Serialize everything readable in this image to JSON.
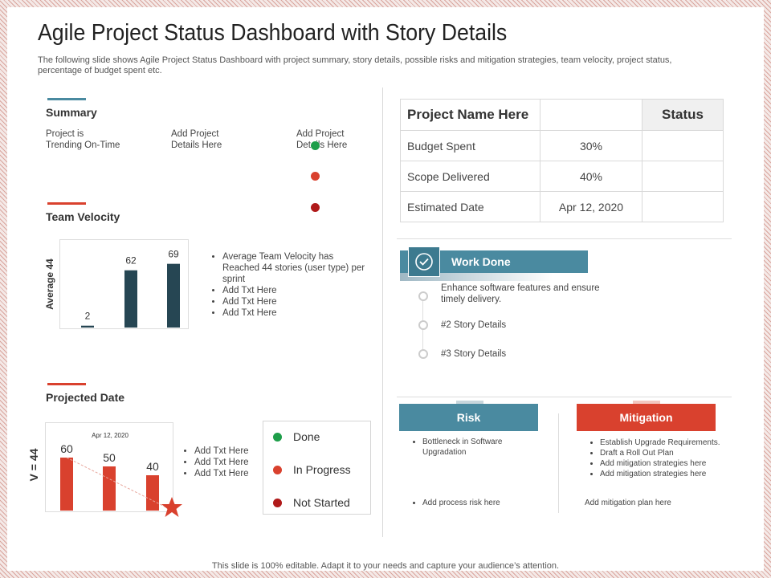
{
  "title": "Agile Project Status Dashboard with Story Details",
  "subtitle": "The following slide shows Agile Project Status Dashboard with project summary, story details, possible risks and mitigation strategies, team velocity, project status, percentage of budget spent etc.",
  "colors": {
    "teal": "#4a8aa0",
    "navy": "#264653",
    "red": "#d9412e",
    "green": "#1e9e4a",
    "dark_red": "#b01a1a"
  },
  "summary": {
    "heading": "Summary",
    "cols": [
      "Project is\nTrending On-Time",
      "Add Project\nDetails Here",
      "Add Project\nDetails Here"
    ],
    "status_dots": [
      "green",
      "red",
      "dark-red"
    ]
  },
  "velocity": {
    "heading": "Team Velocity",
    "axis_label": "Average 44",
    "bullets": [
      "Average Team Velocity has Reached 44 stories (user type) per sprint",
      "Add Txt Here",
      "Add Txt Here",
      "Add Txt Here"
    ]
  },
  "projected": {
    "heading": "Projected Date",
    "chart_label": "Apr 12, 2020",
    "axis_label": "V = 44",
    "bullets": [
      "Add Txt Here",
      "Add Txt Here",
      "Add Txt Here"
    ],
    "legend": [
      {
        "label": "Done",
        "color": "#1e9e4a"
      },
      {
        "label": "In Progress",
        "color": "#d9412e"
      },
      {
        "label": "Not Started",
        "color": "#b01a1a"
      }
    ]
  },
  "chart_data": [
    {
      "type": "bar",
      "title": "",
      "ylabel": "Average 44",
      "categories": [
        "",
        "",
        ""
      ],
      "values": [
        2,
        62,
        69
      ],
      "ylim": [
        0,
        80
      ]
    },
    {
      "type": "bar",
      "title": "Apr 12, 2020",
      "ylabel": "V = 44",
      "categories": [
        "",
        "",
        ""
      ],
      "values": [
        60,
        50,
        40
      ],
      "ylim": [
        0,
        80
      ]
    }
  ],
  "table": {
    "header": [
      "Project Name Here",
      "",
      "Status"
    ],
    "rows": [
      [
        "Budget Spent",
        "30%",
        ""
      ],
      [
        "Scope Delivered",
        "40%",
        ""
      ],
      [
        "Estimated Date",
        "Apr 12, 2020",
        ""
      ]
    ]
  },
  "work_done": {
    "heading": "Work Done",
    "icon": "check-circle-icon",
    "items": [
      "Enhance software features and ensure timely delivery.",
      "#2 Story Details",
      "#3 Story Details"
    ]
  },
  "risk": {
    "heading": "Risk",
    "bullets": [
      "Bottleneck in Software Upgradation"
    ],
    "footer": "Add process risk here"
  },
  "mitigation": {
    "heading": "Mitigation",
    "bullets": [
      "Establish Upgrade Requirements.",
      "Draft a Roll Out Plan",
      "Add  mitigation  strategies here",
      "Add  mitigation  strategies here"
    ],
    "footer": "Add  mitigation  plan here"
  },
  "footer": "This slide is 100% editable. Adapt it to your needs and capture your audience’s attention."
}
